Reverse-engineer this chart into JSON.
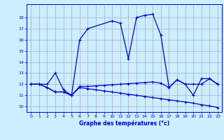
{
  "xlabel": "Graphe des températures (°c)",
  "background_color": "#cceeff",
  "grid_color": "#aaaacc",
  "line_color": "#0000cc",
  "ylim": [
    9.5,
    19.2
  ],
  "xlim": [
    -0.5,
    23.5
  ],
  "yticks": [
    10,
    11,
    12,
    13,
    14,
    15,
    16,
    17,
    18
  ],
  "xticks": [
    0,
    1,
    2,
    3,
    4,
    5,
    6,
    7,
    8,
    9,
    10,
    11,
    12,
    13,
    14,
    15,
    16,
    17,
    18,
    19,
    20,
    21,
    22,
    23
  ],
  "series1_x": [
    0,
    1,
    2,
    3,
    4,
    5,
    6,
    7,
    10,
    11,
    12,
    13,
    14,
    15,
    16,
    17,
    18,
    19,
    20,
    21,
    22,
    23
  ],
  "series1_y": [
    12.0,
    12.0,
    12.0,
    13.0,
    11.5,
    11.0,
    16.0,
    17.0,
    17.7,
    17.5,
    14.3,
    18.0,
    18.2,
    18.3,
    16.4,
    11.7,
    12.4,
    12.0,
    11.0,
    12.5,
    12.5,
    12.0
  ],
  "series2_x": [
    0,
    1,
    2,
    3,
    4,
    5,
    6,
    7,
    8,
    9,
    10,
    11,
    12,
    13,
    14,
    15,
    16,
    17,
    18,
    19,
    20,
    21,
    22,
    23
  ],
  "series2_y": [
    12.0,
    12.0,
    11.7,
    11.3,
    11.3,
    11.0,
    11.8,
    11.8,
    11.85,
    11.9,
    11.95,
    12.0,
    12.05,
    12.1,
    12.15,
    12.2,
    12.1,
    11.7,
    12.4,
    12.0,
    12.0,
    12.0,
    12.5,
    12.0
  ],
  "series3_x": [
    0,
    1,
    2,
    3,
    4,
    5,
    6,
    7,
    8,
    9,
    10,
    11,
    12,
    13,
    14,
    15,
    16,
    17,
    18,
    19,
    20,
    21,
    22,
    23
  ],
  "series3_y": [
    12.0,
    12.0,
    11.7,
    11.3,
    11.3,
    11.0,
    11.7,
    11.6,
    11.5,
    11.4,
    11.3,
    11.2,
    11.1,
    11.0,
    10.9,
    10.8,
    10.7,
    10.6,
    10.5,
    10.4,
    10.3,
    10.15,
    10.05,
    9.9
  ]
}
